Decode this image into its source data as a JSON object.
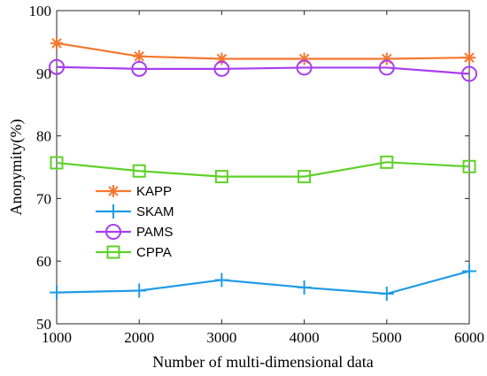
{
  "chart_data": {
    "type": "line",
    "title": "",
    "xlabel": "Number of multi-dimensional data",
    "ylabel": "Anonymity(%)",
    "x": [
      1000,
      2000,
      3000,
      4000,
      5000,
      6000
    ],
    "xticks": [
      1000,
      2000,
      3000,
      4000,
      5000,
      6000
    ],
    "xlim": [
      1000,
      6000
    ],
    "yticks": [
      50,
      60,
      70,
      80,
      90,
      100
    ],
    "ylim": [
      50,
      100
    ],
    "grid": false,
    "legend_position": "center-left",
    "series": [
      {
        "name": "KAPP",
        "color": "#f5772e",
        "marker": "asterisk",
        "values": [
          94.8,
          92.7,
          92.3,
          92.3,
          92.3,
          92.5
        ]
      },
      {
        "name": "SKAM",
        "color": "#1f9be6",
        "marker": "plus",
        "values": [
          55.0,
          55.3,
          57.0,
          55.8,
          54.8,
          58.4
        ]
      },
      {
        "name": "PAMS",
        "color": "#a93ef0",
        "marker": "circle",
        "values": [
          91.0,
          90.7,
          90.7,
          90.9,
          90.9,
          89.9
        ]
      },
      {
        "name": "CPPA",
        "color": "#5fd128",
        "marker": "square",
        "values": [
          75.7,
          74.4,
          73.5,
          73.5,
          75.8,
          75.1
        ]
      }
    ]
  }
}
